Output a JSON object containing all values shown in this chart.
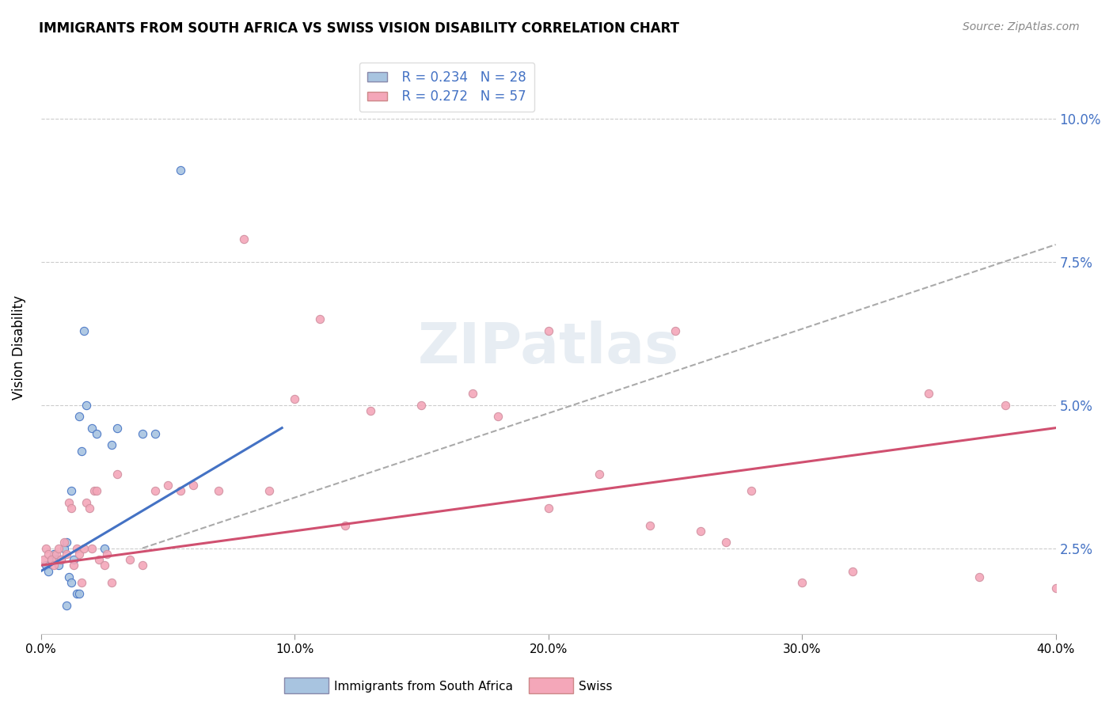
{
  "title": "IMMIGRANTS FROM SOUTH AFRICA VS SWISS VISION DISABILITY CORRELATION CHART",
  "source": "Source: ZipAtlas.com",
  "ylabel": "Vision Disability",
  "x_tick_labels": [
    "0.0%",
    "10.0%",
    "20.0%",
    "30.0%",
    "40.0%"
  ],
  "x_tick_vals": [
    0.0,
    10.0,
    20.0,
    30.0,
    40.0
  ],
  "y_tick_labels": [
    "2.5%",
    "5.0%",
    "7.5%",
    "10.0%"
  ],
  "y_tick_vals": [
    2.5,
    5.0,
    7.5,
    10.0
  ],
  "xlim": [
    0.0,
    40.0
  ],
  "ylim": [
    1.0,
    11.0
  ],
  "legend_label_blue": "Immigrants from South Africa",
  "legend_label_pink": "Swiss",
  "legend_R_blue": "R = 0.234",
  "legend_N_blue": "N = 28",
  "legend_R_pink": "R = 0.272",
  "legend_N_pink": "N = 57",
  "color_blue": "#a8c4e0",
  "color_pink": "#f4a7b9",
  "color_blue_line": "#4472c4",
  "color_pink_line": "#d05070",
  "color_dashed": "#aaaaaa",
  "bg_color": "#ffffff",
  "watermark": "ZIPatlas",
  "blue_scatter_x": [
    0.2,
    0.3,
    0.4,
    0.5,
    0.6,
    0.7,
    0.8,
    0.9,
    1.0,
    1.0,
    1.1,
    1.2,
    1.3,
    1.4,
    1.5,
    1.6,
    1.7,
    1.8,
    2.0,
    2.2,
    2.5,
    2.8,
    3.0,
    4.0,
    4.5,
    5.5,
    1.2,
    1.5
  ],
  "blue_scatter_y": [
    2.2,
    2.1,
    2.3,
    2.4,
    2.3,
    2.2,
    2.3,
    2.5,
    2.6,
    1.5,
    2.0,
    1.9,
    2.3,
    1.7,
    4.8,
    4.2,
    6.3,
    5.0,
    4.6,
    4.5,
    2.5,
    4.3,
    4.6,
    4.5,
    4.5,
    9.1,
    3.5,
    1.7
  ],
  "pink_scatter_x": [
    0.1,
    0.2,
    0.3,
    0.4,
    0.5,
    0.6,
    0.7,
    0.8,
    0.9,
    1.0,
    1.1,
    1.2,
    1.3,
    1.4,
    1.5,
    1.6,
    1.7,
    1.8,
    1.9,
    2.0,
    2.1,
    2.2,
    2.3,
    2.5,
    2.6,
    2.8,
    3.0,
    3.5,
    4.0,
    4.5,
    5.0,
    5.5,
    6.0,
    7.0,
    8.0,
    9.0,
    10.0,
    11.0,
    12.0,
    13.0,
    15.0,
    17.0,
    18.0,
    20.0,
    22.0,
    24.0,
    25.0,
    26.0,
    27.0,
    28.0,
    30.0,
    32.0,
    35.0,
    37.0,
    38.0,
    40.0,
    20.0
  ],
  "pink_scatter_y": [
    2.3,
    2.5,
    2.4,
    2.3,
    2.2,
    2.4,
    2.5,
    2.3,
    2.6,
    2.4,
    3.3,
    3.2,
    2.2,
    2.5,
    2.4,
    1.9,
    2.5,
    3.3,
    3.2,
    2.5,
    3.5,
    3.5,
    2.3,
    2.2,
    2.4,
    1.9,
    3.8,
    2.3,
    2.2,
    3.5,
    3.6,
    3.5,
    3.6,
    3.5,
    7.9,
    3.5,
    5.1,
    6.5,
    2.9,
    4.9,
    5.0,
    5.2,
    4.8,
    3.2,
    3.8,
    2.9,
    6.3,
    2.8,
    2.6,
    3.5,
    1.9,
    2.1,
    5.2,
    2.0,
    5.0,
    1.8,
    6.3
  ],
  "blue_line_x": [
    0.0,
    9.5
  ],
  "blue_line_y": [
    2.1,
    4.6
  ],
  "pink_line_x": [
    0.0,
    40.0
  ],
  "pink_line_y": [
    2.2,
    4.6
  ],
  "dash_line_x": [
    4.0,
    40.0
  ],
  "dash_line_y": [
    2.5,
    7.8
  ]
}
